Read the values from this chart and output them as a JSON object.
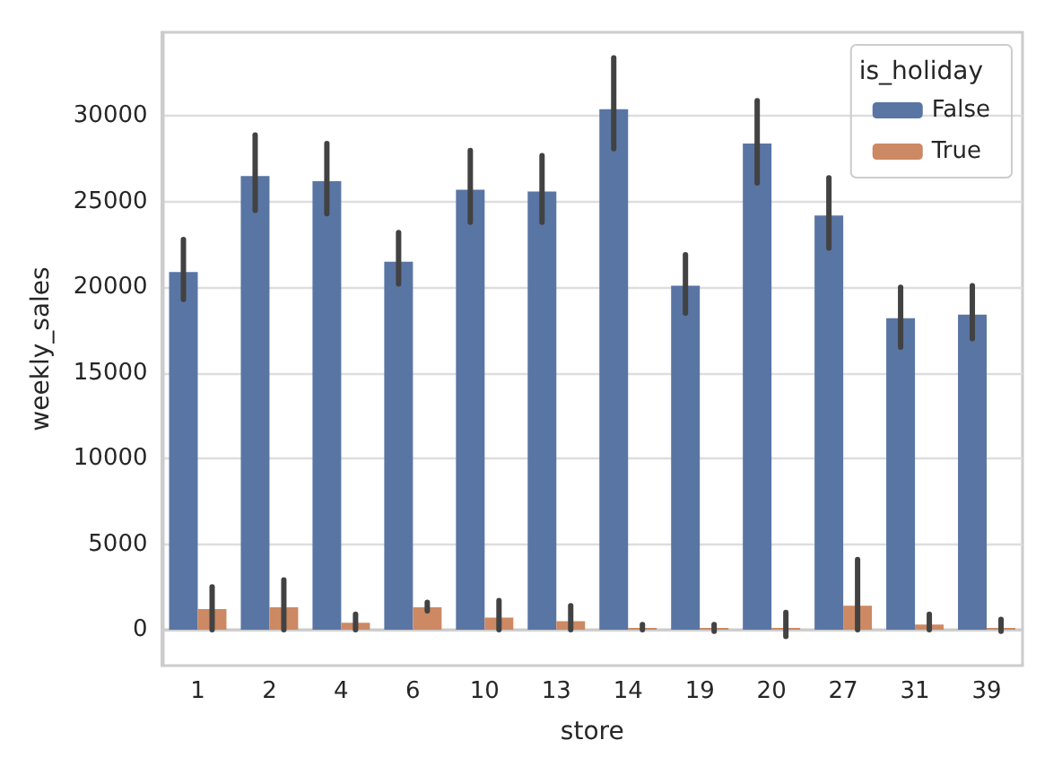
{
  "chart_data": {
    "type": "bar",
    "xlabel": "store",
    "ylabel": "weekly_sales",
    "legend_title": "is_holiday",
    "categories": [
      "1",
      "2",
      "4",
      "6",
      "10",
      "13",
      "14",
      "19",
      "20",
      "27",
      "31",
      "39"
    ],
    "series": [
      {
        "name": "False",
        "color": "#5975a4",
        "values": [
          20900,
          26500,
          26200,
          21500,
          25700,
          25600,
          30400,
          20100,
          28400,
          24200,
          18200,
          18400
        ],
        "errors": [
          [
            19300,
            22800
          ],
          [
            24500,
            28900
          ],
          [
            24300,
            28400
          ],
          [
            20200,
            23200
          ],
          [
            23800,
            28000
          ],
          [
            23800,
            27700
          ],
          [
            28100,
            33400
          ],
          [
            18500,
            21900
          ],
          [
            26100,
            30900
          ],
          [
            22300,
            26400
          ],
          [
            16500,
            20000
          ],
          [
            17000,
            20100
          ]
        ]
      },
      {
        "name": "True",
        "color": "#cc8963",
        "values": [
          1200,
          1300,
          400,
          1300,
          700,
          500,
          100,
          100,
          100,
          1400,
          300,
          100
        ],
        "errors": [
          [
            0,
            2500
          ],
          [
            0,
            2900
          ],
          [
            0,
            900
          ],
          [
            1100,
            1600
          ],
          [
            0,
            1700
          ],
          [
            0,
            1400
          ],
          [
            0,
            300
          ],
          [
            -100,
            300
          ],
          [
            -400,
            1000
          ],
          [
            0,
            4100
          ],
          [
            0,
            900
          ],
          [
            -100,
            600
          ]
        ]
      }
    ],
    "ylim": [
      -2100,
      34900
    ],
    "yticks": [
      0,
      5000,
      10000,
      15000,
      20000,
      25000,
      30000
    ],
    "grid": "y",
    "legend": "top right"
  }
}
